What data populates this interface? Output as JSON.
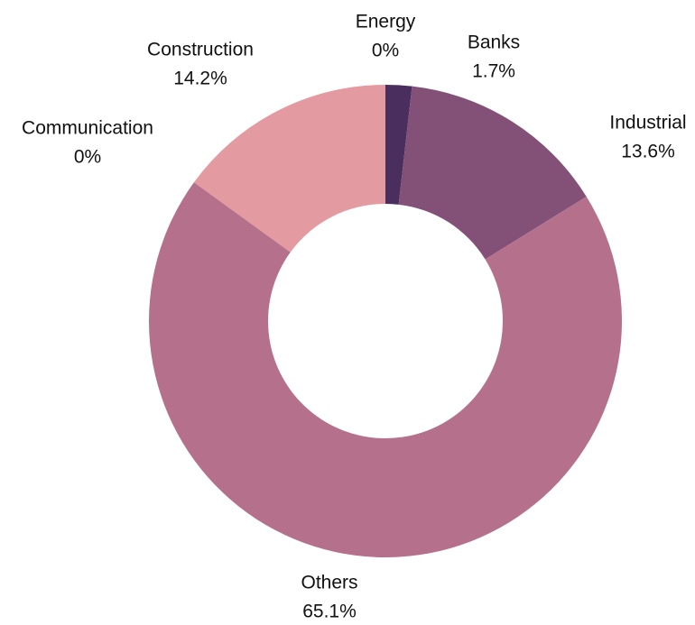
{
  "chart_data": {
    "type": "donut",
    "categories": [
      "Energy",
      "Banks",
      "Industrial",
      "Others",
      "Communication",
      "Construction"
    ],
    "values": [
      0,
      1.7,
      13.6,
      65.1,
      0,
      14.2
    ],
    "value_labels": [
      "0%",
      "1.7%",
      "13.6%",
      "65.1%",
      "0%",
      "14.2%"
    ],
    "colors": [
      "#0f1d48",
      "#4a2f5e",
      "#835078",
      "#b5708c",
      "#b5708c",
      "#e49aa1"
    ]
  }
}
